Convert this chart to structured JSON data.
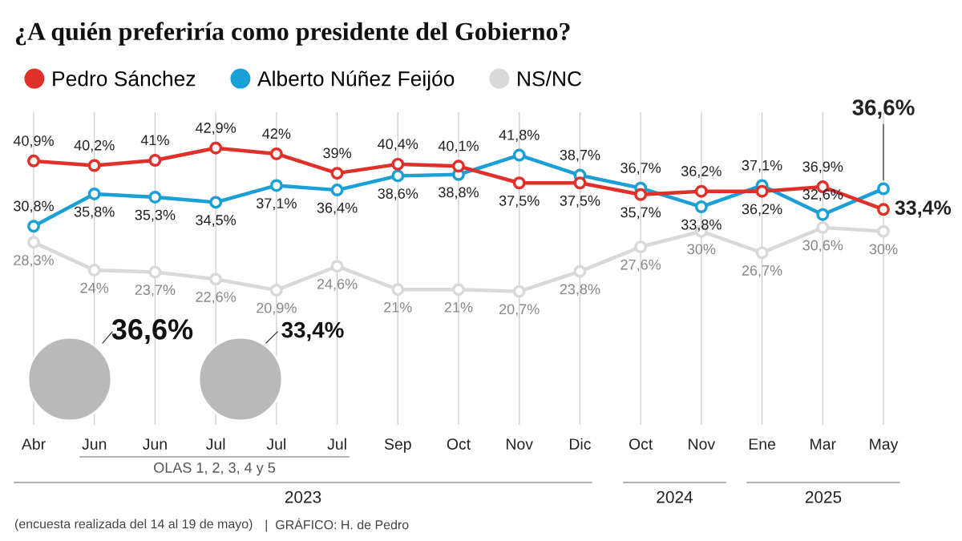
{
  "chart_data": {
    "type": "line",
    "title": "¿A quién preferiría como presidente del Gobierno?",
    "categories": [
      "Abr",
      "Jun",
      "Jun",
      "Jul",
      "Jul",
      "Jul",
      "Sep",
      "Oct",
      "Nov",
      "Dic",
      "Oct",
      "Nov",
      "Ene",
      "Mar",
      "May"
    ],
    "series": [
      {
        "name": "Pedro Sánchez",
        "color": "#e0302a",
        "values": [
          40.9,
          40.2,
          41,
          42.9,
          42,
          39,
          40.4,
          40.1,
          37.5,
          37.5,
          35.7,
          36.2,
          36.2,
          36.9,
          33.4
        ],
        "value_labels": [
          "40,9%",
          "40,2%",
          "41%",
          "42,9%",
          "42%",
          "39%",
          "40,4%",
          "40,1%",
          "37,5%",
          "37,5%",
          "35,7%",
          "36,2%",
          "36,2%",
          "36,9%",
          "33,4%"
        ]
      },
      {
        "name": "Alberto Núñez Feijóo",
        "color": "#1a9fd6",
        "values": [
          30.8,
          35.8,
          35.3,
          34.5,
          37.1,
          36.4,
          38.6,
          38.8,
          41.8,
          38.7,
          36.7,
          33.8,
          37.1,
          32.6,
          36.6
        ],
        "value_labels": [
          "30,8%",
          "35,8%",
          "35,3%",
          "34,5%",
          "37,1%",
          "36,4%",
          "38,6%",
          "38,8%",
          "41,8%",
          "38,7%",
          "36,7%",
          "33,8%",
          "37,1%",
          "32,6%",
          "36,6%"
        ]
      },
      {
        "name": "NS/NC",
        "color": "#d9d9d9",
        "values": [
          28.3,
          24,
          23.7,
          22.6,
          20.9,
          24.6,
          21,
          21,
          20.7,
          23.8,
          27.6,
          30,
          26.7,
          30.6,
          30
        ],
        "value_labels": [
          "28,3%",
          "24%",
          "23,7%",
          "22,6%",
          "20,9%",
          "24,6%",
          "21%",
          "21%",
          "20,7%",
          "23,8%",
          "27,6%",
          "30%",
          "26,7%",
          "30,6%",
          "30%"
        ]
      }
    ],
    "marker": "circle",
    "grid": "x",
    "legend": "top left",
    "annotations": [
      "36,6%",
      "33,4%",
      "OLAS 1, 2, 3, 4 y 5",
      "2023",
      "2024",
      "2025",
      "(encuesta realizada del 14 al 19 de mayo)",
      "|  GRÁFICO: H. de Pedro"
    ]
  }
}
